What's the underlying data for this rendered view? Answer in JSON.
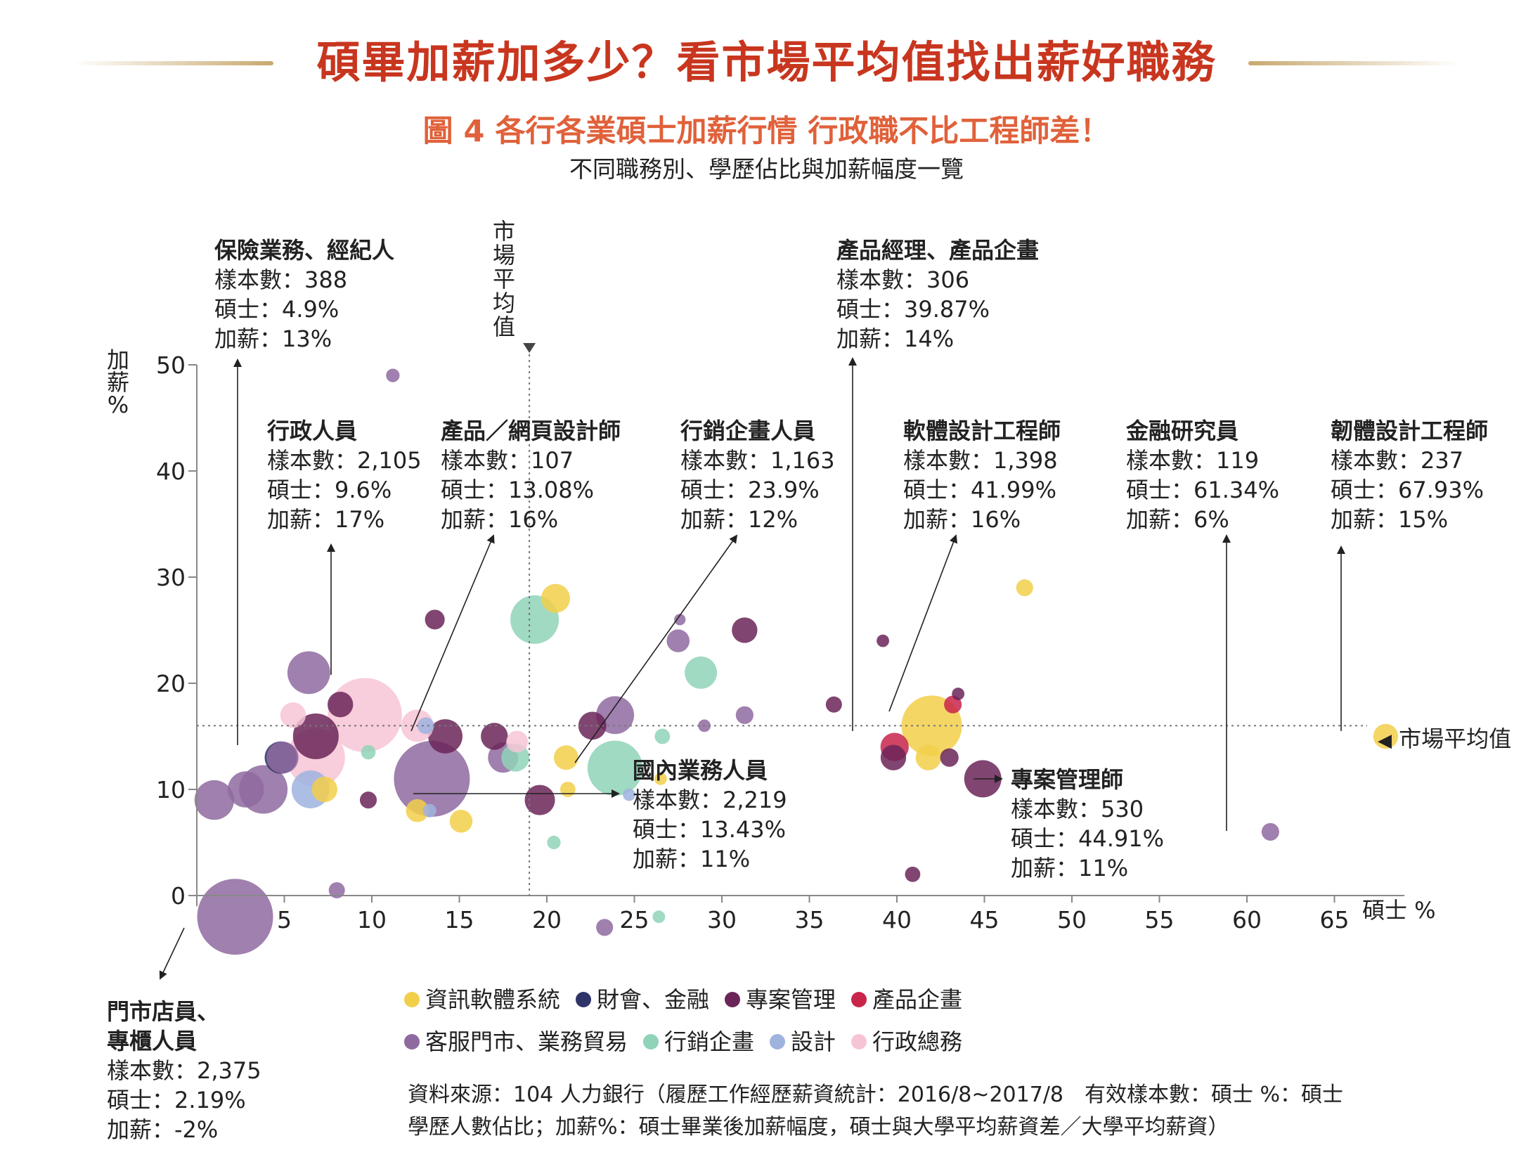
{
  "header": {
    "title": "碩畢加薪加多少？看市場平均值找出薪好職務",
    "figure_title": "圖 4  各行各業碩士加薪行情 行政職不比工程師差！",
    "subtitle": "不同職務別、學歷佔比與加薪幅度一覽"
  },
  "colors": {
    "資訊軟體系統": "#f2cf4a",
    "財會、金融": "#2e3468",
    "專案管理": "#6b2558",
    "產品企畫": "#c8254a",
    "客服門市、業務貿易": "#8f6aa0",
    "行銷企畫": "#8fd3b8",
    "設計": "#9fb3df",
    "行政總務": "#f7c4d6",
    "accent_title": "#c8361f",
    "accent_figure": "#e0613a"
  },
  "chart_data": {
    "type": "scatter",
    "bubble": true,
    "xlabel": "碩士 %",
    "ylabel": "加薪 %",
    "xlim": [
      0,
      70
    ],
    "ylim": [
      -5,
      52
    ],
    "x_ticks": [
      "5",
      "10",
      "15",
      "20",
      "25",
      "30",
      "35",
      "40",
      "45",
      "50",
      "55",
      "60",
      "65"
    ],
    "y_ticks": [
      "0",
      "10",
      "20",
      "30",
      "40",
      "50"
    ],
    "grid": false,
    "market_average": {
      "x": 19.0,
      "y": 16.0,
      "label": "市場平均值",
      "x_label": "市場平均值"
    },
    "legend": [
      {
        "name": "資訊軟體系統"
      },
      {
        "name": "財會、金融"
      },
      {
        "name": "專案管理"
      },
      {
        "name": "產品企畫"
      },
      {
        "name": "客服門市、業務貿易"
      },
      {
        "name": "行銷企畫"
      },
      {
        "name": "設計"
      },
      {
        "name": "行政總務"
      }
    ],
    "points": [
      {
        "category": "客服門市、業務貿易",
        "x": 2.19,
        "y": -2,
        "n": 2375
      },
      {
        "category": "客服門市、業務貿易",
        "x": 13.43,
        "y": 11,
        "n": 2219
      },
      {
        "category": "行政總務",
        "x": 9.6,
        "y": 17,
        "n": 2105
      },
      {
        "category": "資訊軟體系統",
        "x": 41.99,
        "y": 16,
        "n": 1398
      },
      {
        "category": "行銷企畫",
        "x": 23.9,
        "y": 12,
        "n": 1163
      },
      {
        "category": "專案管理",
        "x": 44.91,
        "y": 11,
        "n": 530
      },
      {
        "category": "客服門市、業務貿易",
        "x": 4.9,
        "y": 13,
        "n": 388
      },
      {
        "category": "產品企畫",
        "x": 39.87,
        "y": 14,
        "n": 306
      },
      {
        "category": "資訊軟體系統",
        "x": 67.93,
        "y": 15,
        "n": 237
      },
      {
        "category": "客服門市、業務貿易",
        "x": 61.34,
        "y": 6,
        "n": 119
      },
      {
        "category": "設計",
        "x": 13.08,
        "y": 16,
        "n": 107
      },
      {
        "category": "客服門市、業務貿易",
        "x": 11.2,
        "y": 49,
        "n": 70
      },
      {
        "category": "客服門市、業務貿易",
        "x": 1.0,
        "y": 9,
        "n": 600
      },
      {
        "category": "客服門市、業務貿易",
        "x": 3.8,
        "y": 10,
        "n": 900
      },
      {
        "category": "客服門市、業務貿易",
        "x": 2.8,
        "y": 10,
        "n": 500
      },
      {
        "category": "財會、金融",
        "x": 4.8,
        "y": 13,
        "n": 400
      },
      {
        "category": "客服門市、業務貿易",
        "x": 6.4,
        "y": 21,
        "n": 700
      },
      {
        "category": "行政總務",
        "x": 6.8,
        "y": 13,
        "n": 1300
      },
      {
        "category": "專案管理",
        "x": 6.8,
        "y": 15,
        "n": 800
      },
      {
        "category": "行政總務",
        "x": 5.5,
        "y": 17,
        "n": 250
      },
      {
        "category": "設計",
        "x": 6.5,
        "y": 10,
        "n": 550
      },
      {
        "category": "資訊軟體系統",
        "x": 7.3,
        "y": 10,
        "n": 250
      },
      {
        "category": "專案管理",
        "x": 8.2,
        "y": 18,
        "n": 250
      },
      {
        "category": "客服門市、業務貿易",
        "x": 8.0,
        "y": 0.5,
        "n": 100
      },
      {
        "category": "行銷企畫",
        "x": 9.8,
        "y": 13.5,
        "n": 80
      },
      {
        "category": "專案管理",
        "x": 9.8,
        "y": 9,
        "n": 110
      },
      {
        "category": "行政總務",
        "x": 12.6,
        "y": 16,
        "n": 400
      },
      {
        "category": "資訊軟體系統",
        "x": 12.6,
        "y": 8,
        "n": 200
      },
      {
        "category": "設計",
        "x": 13.3,
        "y": 8,
        "n": 70
      },
      {
        "category": "專案管理",
        "x": 13.6,
        "y": 26,
        "n": 150
      },
      {
        "category": "專案管理",
        "x": 14.2,
        "y": 15,
        "n": 450
      },
      {
        "category": "資訊軟體系統",
        "x": 15.1,
        "y": 7,
        "n": 200
      },
      {
        "category": "專案管理",
        "x": 17.0,
        "y": 15,
        "n": 280
      },
      {
        "category": "客服門市、業務貿易",
        "x": 17.5,
        "y": 13,
        "n": 350
      },
      {
        "category": "行銷企畫",
        "x": 18.2,
        "y": 13,
        "n": 300
      },
      {
        "category": "行政總務",
        "x": 18.3,
        "y": 14.5,
        "n": 180
      },
      {
        "category": "行銷企畫",
        "x": 19.3,
        "y": 26,
        "n": 900
      },
      {
        "category": "專案管理",
        "x": 19.6,
        "y": 9,
        "n": 350
      },
      {
        "category": "資訊軟體系統",
        "x": 20.5,
        "y": 28,
        "n": 320
      },
      {
        "category": "資訊軟體系統",
        "x": 21.1,
        "y": 13,
        "n": 230
      },
      {
        "category": "資訊軟體系統",
        "x": 21.2,
        "y": 10,
        "n": 90
      },
      {
        "category": "專案管理",
        "x": 22.6,
        "y": 16,
        "n": 300
      },
      {
        "category": "客服門市、業務貿易",
        "x": 23.9,
        "y": 17,
        "n": 550
      },
      {
        "category": "行銷企畫",
        "x": 20.4,
        "y": 5,
        "n": 70
      },
      {
        "category": "設計",
        "x": 24.7,
        "y": 9.5,
        "n": 60
      },
      {
        "category": "客服門市、業務貿易",
        "x": 23.3,
        "y": -3,
        "n": 110
      },
      {
        "category": "行銷企畫",
        "x": 26.4,
        "y": -2,
        "n": 60
      },
      {
        "category": "行銷企畫",
        "x": 26.6,
        "y": 15,
        "n": 90
      },
      {
        "category": "客服門市、業務貿易",
        "x": 27.5,
        "y": 24,
        "n": 200
      },
      {
        "category": "客服門市、業務貿易",
        "x": 27.6,
        "y": 26,
        "n": 50
      },
      {
        "category": "行銷企畫",
        "x": 28.8,
        "y": 21,
        "n": 400
      },
      {
        "category": "客服門市、業務貿易",
        "x": 29.0,
        "y": 16,
        "n": 60
      },
      {
        "category": "資訊軟體系統",
        "x": 26.5,
        "y": 11,
        "n": 60
      },
      {
        "category": "專案管理",
        "x": 31.3,
        "y": 25,
        "n": 250
      },
      {
        "category": "客服門市、業務貿易",
        "x": 31.3,
        "y": 17,
        "n": 120
      },
      {
        "category": "專案管理",
        "x": 36.4,
        "y": 18,
        "n": 100
      },
      {
        "category": "專案管理",
        "x": 39.2,
        "y": 24,
        "n": 60
      },
      {
        "category": "專案管理",
        "x": 39.8,
        "y": 13,
        "n": 250
      },
      {
        "category": "專案管理",
        "x": 40.9,
        "y": 2,
        "n": 90
      },
      {
        "category": "資訊軟體系統",
        "x": 41.8,
        "y": 13,
        "n": 250
      },
      {
        "category": "專案管理",
        "x": 43.0,
        "y": 13,
        "n": 130
      },
      {
        "category": "產品企畫",
        "x": 43.2,
        "y": 18,
        "n": 120
      },
      {
        "category": "專案管理",
        "x": 43.5,
        "y": 19,
        "n": 60
      },
      {
        "category": "資訊軟體系統",
        "x": 47.3,
        "y": 29,
        "n": 110
      }
    ],
    "annotations": [
      {
        "id": "insurance",
        "name": "保險業務、經紀人",
        "lines": [
          "樣本數：388",
          "碩士：4.9%",
          "加薪：13%"
        ]
      },
      {
        "id": "admin",
        "name": "行政人員",
        "lines": [
          "樣本數：2,105",
          "碩士：9.6%",
          "加薪：17%"
        ]
      },
      {
        "id": "web",
        "name": "產品／網頁設計師",
        "lines": [
          "樣本數：107",
          "碩士：13.08%",
          "加薪：16%"
        ]
      },
      {
        "id": "marketing",
        "name": "行銷企畫人員",
        "lines": [
          "樣本數：1,163",
          "碩士：23.9%",
          "加薪：12%"
        ]
      },
      {
        "id": "pm",
        "name": "產品經理、產品企畫",
        "lines": [
          "樣本數：306",
          "碩士：39.87%",
          "加薪：14%"
        ]
      },
      {
        "id": "software",
        "name": "軟體設計工程師",
        "lines": [
          "樣本數：1,398",
          "碩士：41.99%",
          "加薪：16%"
        ]
      },
      {
        "id": "finance",
        "name": "金融研究員",
        "lines": [
          "樣本數：119",
          "碩士：61.34%",
          "加薪：6%"
        ]
      },
      {
        "id": "firmware",
        "name": "韌體設計工程師",
        "lines": [
          "樣本數：237",
          "碩士：67.93%",
          "加薪：15%"
        ]
      },
      {
        "id": "sales",
        "name": "國內業務人員",
        "lines": [
          "樣本數：2,219",
          "碩士：13.43%",
          "加薪：11%"
        ]
      },
      {
        "id": "project",
        "name": "專案管理師",
        "lines": [
          "樣本數：530",
          "碩士：44.91%",
          "加薪：11%"
        ]
      },
      {
        "id": "store",
        "name": "門市店員、專櫃人員",
        "name_lines": [
          "門市店員、",
          "專櫃人員"
        ],
        "lines": [
          "樣本數：2,375",
          "碩士：2.19%",
          "加薪：-2%"
        ]
      }
    ]
  },
  "source": {
    "line1": "資料來源：104 人力銀行（履歷工作經歷薪資統計：2016/8~2017/8　有效樣本數：碩士 %：碩士",
    "line2": "學歷人數佔比；加薪%：碩士畢業後加薪幅度，碩士與大學平均薪資差／大學平均薪資）"
  }
}
